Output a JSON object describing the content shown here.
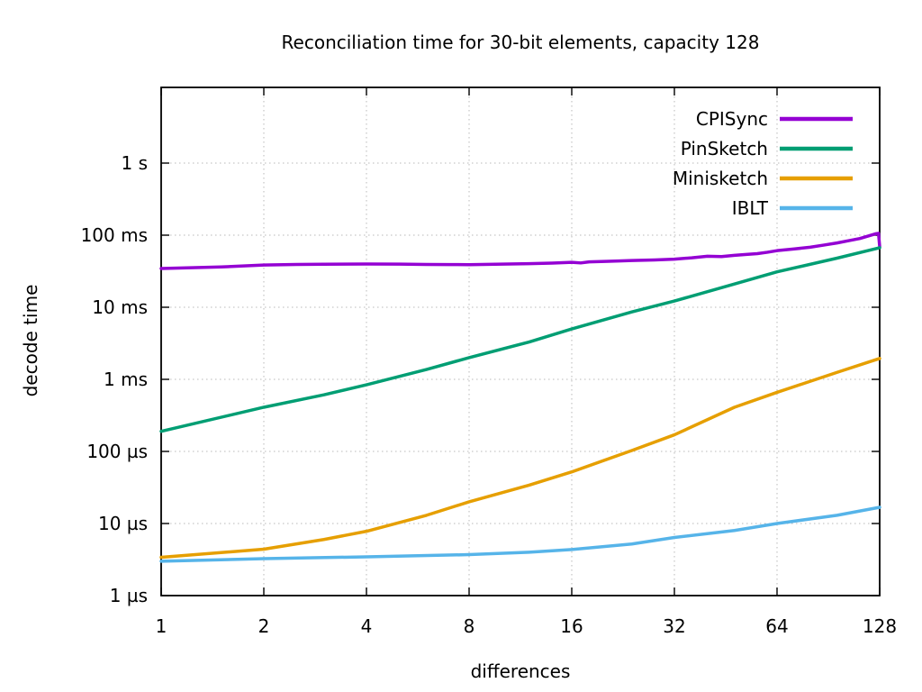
{
  "chart_data": {
    "type": "line",
    "title": "Reconciliation time for 30-bit elements, capacity 128",
    "xlabel": "differences",
    "ylabel": "decode time",
    "x_scale": "log2",
    "y_scale": "log10",
    "grid": true,
    "legend_position": "top-right",
    "xlim": [
      1,
      128
    ],
    "ylim_time_us": [
      1,
      11000000
    ],
    "x_ticks": [
      {
        "label": "1",
        "value": 1
      },
      {
        "label": "2",
        "value": 2
      },
      {
        "label": "4",
        "value": 4
      },
      {
        "label": "8",
        "value": 8
      },
      {
        "label": "16",
        "value": 16
      },
      {
        "label": "32",
        "value": 32
      },
      {
        "label": "64",
        "value": 64
      },
      {
        "label": "128",
        "value": 128
      }
    ],
    "y_ticks": [
      {
        "label": "1 s",
        "us": 1000000
      },
      {
        "label": "100 ms",
        "us": 100000
      },
      {
        "label": "10 ms",
        "us": 10000
      },
      {
        "label": "1 ms",
        "us": 1000
      },
      {
        "label": "100 µs",
        "us": 100
      },
      {
        "label": "10 µs",
        "us": 10
      },
      {
        "label": "1 µs",
        "us": 1
      }
    ],
    "series": [
      {
        "name": "CPISync",
        "color": "#9400d3",
        "unit": "µs",
        "points": [
          [
            1,
            34500
          ],
          [
            1.5,
            36200
          ],
          [
            2,
            38500
          ],
          [
            2.5,
            39200
          ],
          [
            3,
            39500
          ],
          [
            4,
            39800
          ],
          [
            5,
            39600
          ],
          [
            6,
            39300
          ],
          [
            7,
            39100
          ],
          [
            8,
            39000
          ],
          [
            10,
            39700
          ],
          [
            12,
            40300
          ],
          [
            14,
            41000
          ],
          [
            16,
            42000
          ],
          [
            17,
            41200
          ],
          [
            18,
            42600
          ],
          [
            20,
            43200
          ],
          [
            22,
            43800
          ],
          [
            24,
            44500
          ],
          [
            28,
            45300
          ],
          [
            32,
            46500
          ],
          [
            36,
            48500
          ],
          [
            40,
            51000
          ],
          [
            44,
            50500
          ],
          [
            48,
            52500
          ],
          [
            52,
            54000
          ],
          [
            56,
            55500
          ],
          [
            60,
            58000
          ],
          [
            64,
            61000
          ],
          [
            72,
            64500
          ],
          [
            80,
            68000
          ],
          [
            88,
            73000
          ],
          [
            96,
            78000
          ],
          [
            104,
            84000
          ],
          [
            112,
            90000
          ],
          [
            120,
            99000
          ],
          [
            125,
            105000
          ],
          [
            127,
            106000
          ],
          [
            128,
            69000
          ]
        ]
      },
      {
        "name": "PinSketch",
        "color": "#009e73",
        "unit": "µs",
        "points": [
          [
            1,
            190
          ],
          [
            2,
            410
          ],
          [
            3,
            610
          ],
          [
            4,
            840
          ],
          [
            6,
            1370
          ],
          [
            8,
            2000
          ],
          [
            12,
            3300
          ],
          [
            16,
            5000
          ],
          [
            24,
            8600
          ],
          [
            32,
            12200
          ],
          [
            48,
            21000
          ],
          [
            64,
            31000
          ],
          [
            96,
            48000
          ],
          [
            128,
            67000
          ]
        ]
      },
      {
        "name": "Minisketch",
        "color": "#e69f00",
        "unit": "µs",
        "points": [
          [
            1,
            3.4
          ],
          [
            2,
            4.4
          ],
          [
            3,
            6
          ],
          [
            4,
            7.8
          ],
          [
            6,
            13
          ],
          [
            8,
            20
          ],
          [
            12,
            34
          ],
          [
            16,
            52
          ],
          [
            24,
            103
          ],
          [
            32,
            170
          ],
          [
            48,
            410
          ],
          [
            64,
            660
          ],
          [
            96,
            1250
          ],
          [
            128,
            1950
          ]
        ]
      },
      {
        "name": "IBLT",
        "color": "#56b4e9",
        "unit": "µs",
        "points": [
          [
            1,
            3.0
          ],
          [
            2,
            3.25
          ],
          [
            4,
            3.45
          ],
          [
            8,
            3.7
          ],
          [
            12,
            4.0
          ],
          [
            16,
            4.35
          ],
          [
            24,
            5.2
          ],
          [
            32,
            6.4
          ],
          [
            48,
            8.0
          ],
          [
            64,
            10.0
          ],
          [
            96,
            13.0
          ],
          [
            128,
            16.8
          ]
        ]
      }
    ]
  }
}
